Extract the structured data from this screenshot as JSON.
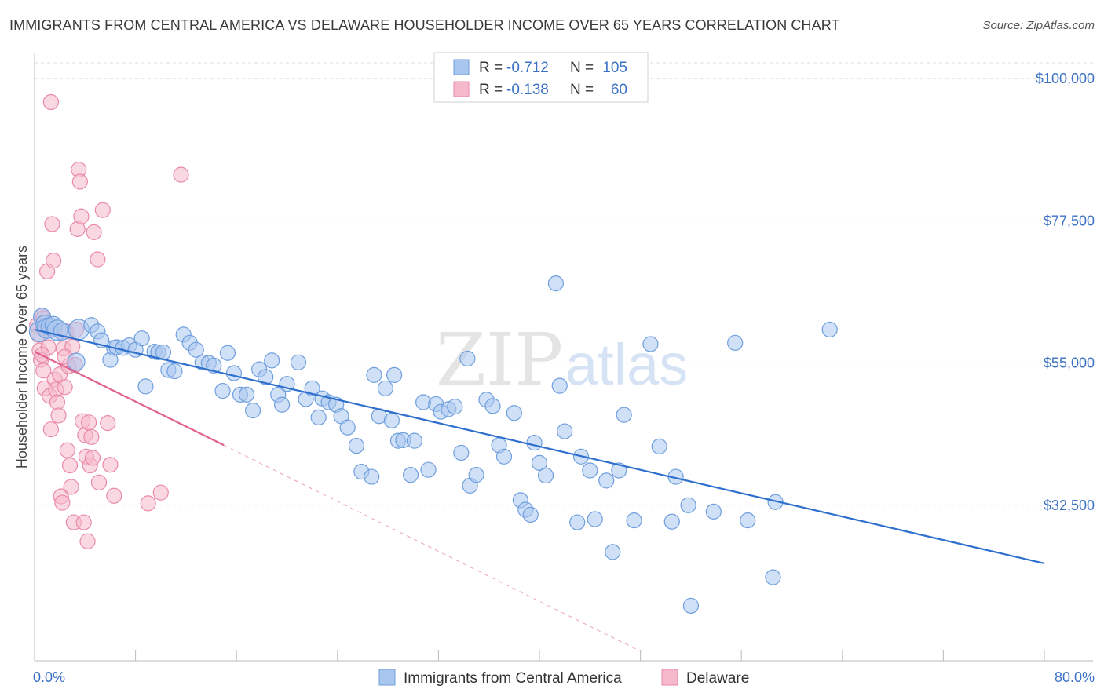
{
  "title": "IMMIGRANTS FROM CENTRAL AMERICA VS DELAWARE HOUSEHOLDER INCOME OVER 65 YEARS CORRELATION CHART",
  "source": "Source: ZipAtlas.com",
  "colors": {
    "blue_fill": "#a9c6ee",
    "blue_stroke": "#6f9fde",
    "blue_line": "#2f6fce",
    "pink_fill": "#f6b8cb",
    "pink_stroke": "#e98aa9",
    "pink_line": "#e0628e",
    "grid": "#dddddd",
    "tick_label": "#3b72c5"
  },
  "legend_top": {
    "rows": [
      {
        "r_label": "R = ",
        "r_value": "-0.712",
        "n_label": "N = ",
        "n_value": "105"
      },
      {
        "r_label": "R = ",
        "r_value": "-0.138",
        "n_label": "N = ",
        "n_value": "60"
      }
    ]
  },
  "legend_bottom": {
    "items": [
      "Immigrants from Central America",
      "Delaware"
    ]
  },
  "chart_data": {
    "type": "scatter",
    "title": "IMMIGRANTS FROM CENTRAL AMERICA VS DELAWARE HOUSEHOLDER INCOME OVER 65 YEARS CORRELATION CHART",
    "xlabel": "",
    "ylabel": "Householder Income Over 65 years",
    "xlim": [
      0,
      80
    ],
    "ylim": [
      10000,
      104000
    ],
    "x_tick_labels": [
      "0.0%",
      "80.0%"
    ],
    "y_ticks": [
      32500,
      55000,
      77500,
      100000
    ],
    "y_tick_labels": [
      "$32,500",
      "$55,000",
      "$77,500",
      "$100,000"
    ],
    "grid": true,
    "watermark": "ZIPatlas",
    "series": [
      {
        "name": "Immigrants from Central America",
        "color": "#6f9fde",
        "r": -0.712,
        "n": 105,
        "trend": {
          "x": [
            0,
            80
          ],
          "y": [
            60300,
            23300
          ]
        },
        "points": [
          [
            0.4,
            60000
          ],
          [
            0.6,
            62300
          ],
          [
            0.8,
            61200
          ],
          [
            1.0,
            60500
          ],
          [
            1.2,
            60800
          ],
          [
            1.5,
            61000
          ],
          [
            1.8,
            60200
          ],
          [
            2.2,
            60000
          ],
          [
            3.3,
            55200
          ],
          [
            3.5,
            60300
          ],
          [
            4.5,
            61000
          ],
          [
            5.0,
            60000
          ],
          [
            5.3,
            58600
          ],
          [
            6.0,
            55500
          ],
          [
            6.3,
            57400
          ],
          [
            6.5,
            57500
          ],
          [
            7.0,
            57400
          ],
          [
            7.5,
            57800
          ],
          [
            8.0,
            57100
          ],
          [
            8.5,
            58900
          ],
          [
            8.8,
            51300
          ],
          [
            9.5,
            56800
          ],
          [
            9.8,
            56700
          ],
          [
            10.2,
            56700
          ],
          [
            10.6,
            53900
          ],
          [
            11.1,
            53700
          ],
          [
            11.8,
            59500
          ],
          [
            12.3,
            58200
          ],
          [
            12.8,
            57100
          ],
          [
            13.3,
            55100
          ],
          [
            13.8,
            55000
          ],
          [
            14.2,
            54600
          ],
          [
            14.9,
            50600
          ],
          [
            15.3,
            56600
          ],
          [
            15.8,
            53400
          ],
          [
            16.3,
            50000
          ],
          [
            16.8,
            50000
          ],
          [
            17.3,
            47500
          ],
          [
            17.8,
            54000
          ],
          [
            18.3,
            52800
          ],
          [
            18.8,
            55400
          ],
          [
            19.3,
            50000
          ],
          [
            19.6,
            48400
          ],
          [
            20.0,
            51700
          ],
          [
            20.9,
            55100
          ],
          [
            21.5,
            49300
          ],
          [
            22.0,
            51000
          ],
          [
            22.5,
            46400
          ],
          [
            22.8,
            49400
          ],
          [
            23.3,
            48800
          ],
          [
            23.9,
            48400
          ],
          [
            24.3,
            46600
          ],
          [
            24.8,
            44800
          ],
          [
            25.5,
            41900
          ],
          [
            25.9,
            37800
          ],
          [
            26.7,
            37000
          ],
          [
            26.9,
            53100
          ],
          [
            27.3,
            46600
          ],
          [
            27.8,
            51000
          ],
          [
            28.3,
            45900
          ],
          [
            28.8,
            42700
          ],
          [
            29.2,
            42800
          ],
          [
            29.8,
            37300
          ],
          [
            30.1,
            42700
          ],
          [
            30.8,
            48800
          ],
          [
            31.2,
            38100
          ],
          [
            31.8,
            48500
          ],
          [
            32.2,
            47300
          ],
          [
            32.8,
            47700
          ],
          [
            33.3,
            48100
          ],
          [
            33.8,
            40800
          ],
          [
            34.3,
            55700
          ],
          [
            34.5,
            35600
          ],
          [
            35.0,
            37300
          ],
          [
            35.8,
            49200
          ],
          [
            36.3,
            48200
          ],
          [
            36.8,
            42000
          ],
          [
            37.2,
            40200
          ],
          [
            38.0,
            47100
          ],
          [
            38.5,
            33300
          ],
          [
            38.9,
            31800
          ],
          [
            39.3,
            31000
          ],
          [
            39.6,
            42400
          ],
          [
            40.0,
            39200
          ],
          [
            40.5,
            37200
          ],
          [
            41.6,
            51400
          ],
          [
            42.0,
            44200
          ],
          [
            43.0,
            29800
          ],
          [
            43.3,
            40200
          ],
          [
            44.0,
            38000
          ],
          [
            44.4,
            30300
          ],
          [
            45.3,
            36400
          ],
          [
            45.8,
            25100
          ],
          [
            46.3,
            38000
          ],
          [
            46.7,
            46800
          ],
          [
            47.5,
            30100
          ],
          [
            48.8,
            58000
          ],
          [
            49.5,
            41800
          ],
          [
            50.5,
            29900
          ],
          [
            50.8,
            37000
          ],
          [
            51.8,
            32500
          ],
          [
            53.8,
            31500
          ],
          [
            55.5,
            58200
          ],
          [
            56.5,
            30100
          ],
          [
            58.5,
            21100
          ],
          [
            58.7,
            33000
          ],
          [
            63.0,
            60300
          ],
          [
            52.0,
            16600
          ],
          [
            41.3,
            67600
          ],
          [
            28.5,
            53100
          ]
        ]
      },
      {
        "name": "Delaware",
        "color": "#e98aa9",
        "r": -0.138,
        "n": 60,
        "trend": {
          "x": [
            0,
            15
          ],
          "y": [
            56800,
            42000
          ]
        },
        "trend_dashed": {
          "x": [
            15,
            48
          ],
          "y": [
            42000,
            9400
          ]
        },
        "points": [
          [
            0.2,
            61000
          ],
          [
            0.3,
            59500
          ],
          [
            0.4,
            57000
          ],
          [
            0.5,
            55500
          ],
          [
            0.6,
            62500
          ],
          [
            0.7,
            53800
          ],
          [
            0.8,
            51000
          ],
          [
            0.9,
            60500
          ],
          [
            1.0,
            69500
          ],
          [
            1.1,
            57500
          ],
          [
            1.2,
            49800
          ],
          [
            1.3,
            44500
          ],
          [
            1.4,
            77000
          ],
          [
            1.5,
            71200
          ],
          [
            1.6,
            52400
          ],
          [
            1.7,
            50800
          ],
          [
            1.8,
            48800
          ],
          [
            1.9,
            46700
          ],
          [
            2.0,
            53200
          ],
          [
            2.1,
            33900
          ],
          [
            2.2,
            32900
          ],
          [
            2.3,
            57300
          ],
          [
            2.4,
            51200
          ],
          [
            2.5,
            60000
          ],
          [
            2.6,
            41200
          ],
          [
            2.7,
            54500
          ],
          [
            2.8,
            38800
          ],
          [
            2.9,
            35400
          ],
          [
            3.0,
            57600
          ],
          [
            3.1,
            29800
          ],
          [
            3.2,
            54700
          ],
          [
            3.4,
            76200
          ],
          [
            3.5,
            85600
          ],
          [
            3.6,
            83700
          ],
          [
            3.7,
            78200
          ],
          [
            3.8,
            45800
          ],
          [
            3.9,
            29800
          ],
          [
            4.0,
            43600
          ],
          [
            4.1,
            40200
          ],
          [
            4.2,
            26800
          ],
          [
            4.3,
            45600
          ],
          [
            4.4,
            38800
          ],
          [
            4.5,
            43300
          ],
          [
            4.6,
            40000
          ],
          [
            4.7,
            75700
          ],
          [
            5.0,
            71400
          ],
          [
            5.1,
            36100
          ],
          [
            5.4,
            79200
          ],
          [
            5.8,
            45500
          ],
          [
            6.0,
            38900
          ],
          [
            6.3,
            34000
          ],
          [
            9.0,
            32800
          ],
          [
            10.0,
            34500
          ],
          [
            11.6,
            84800
          ],
          [
            1.3,
            96300
          ],
          [
            1.6,
            60300
          ],
          [
            0.6,
            56300
          ],
          [
            2.4,
            56000
          ],
          [
            0.7,
            62100
          ],
          [
            3.3,
            60300
          ]
        ]
      }
    ]
  }
}
